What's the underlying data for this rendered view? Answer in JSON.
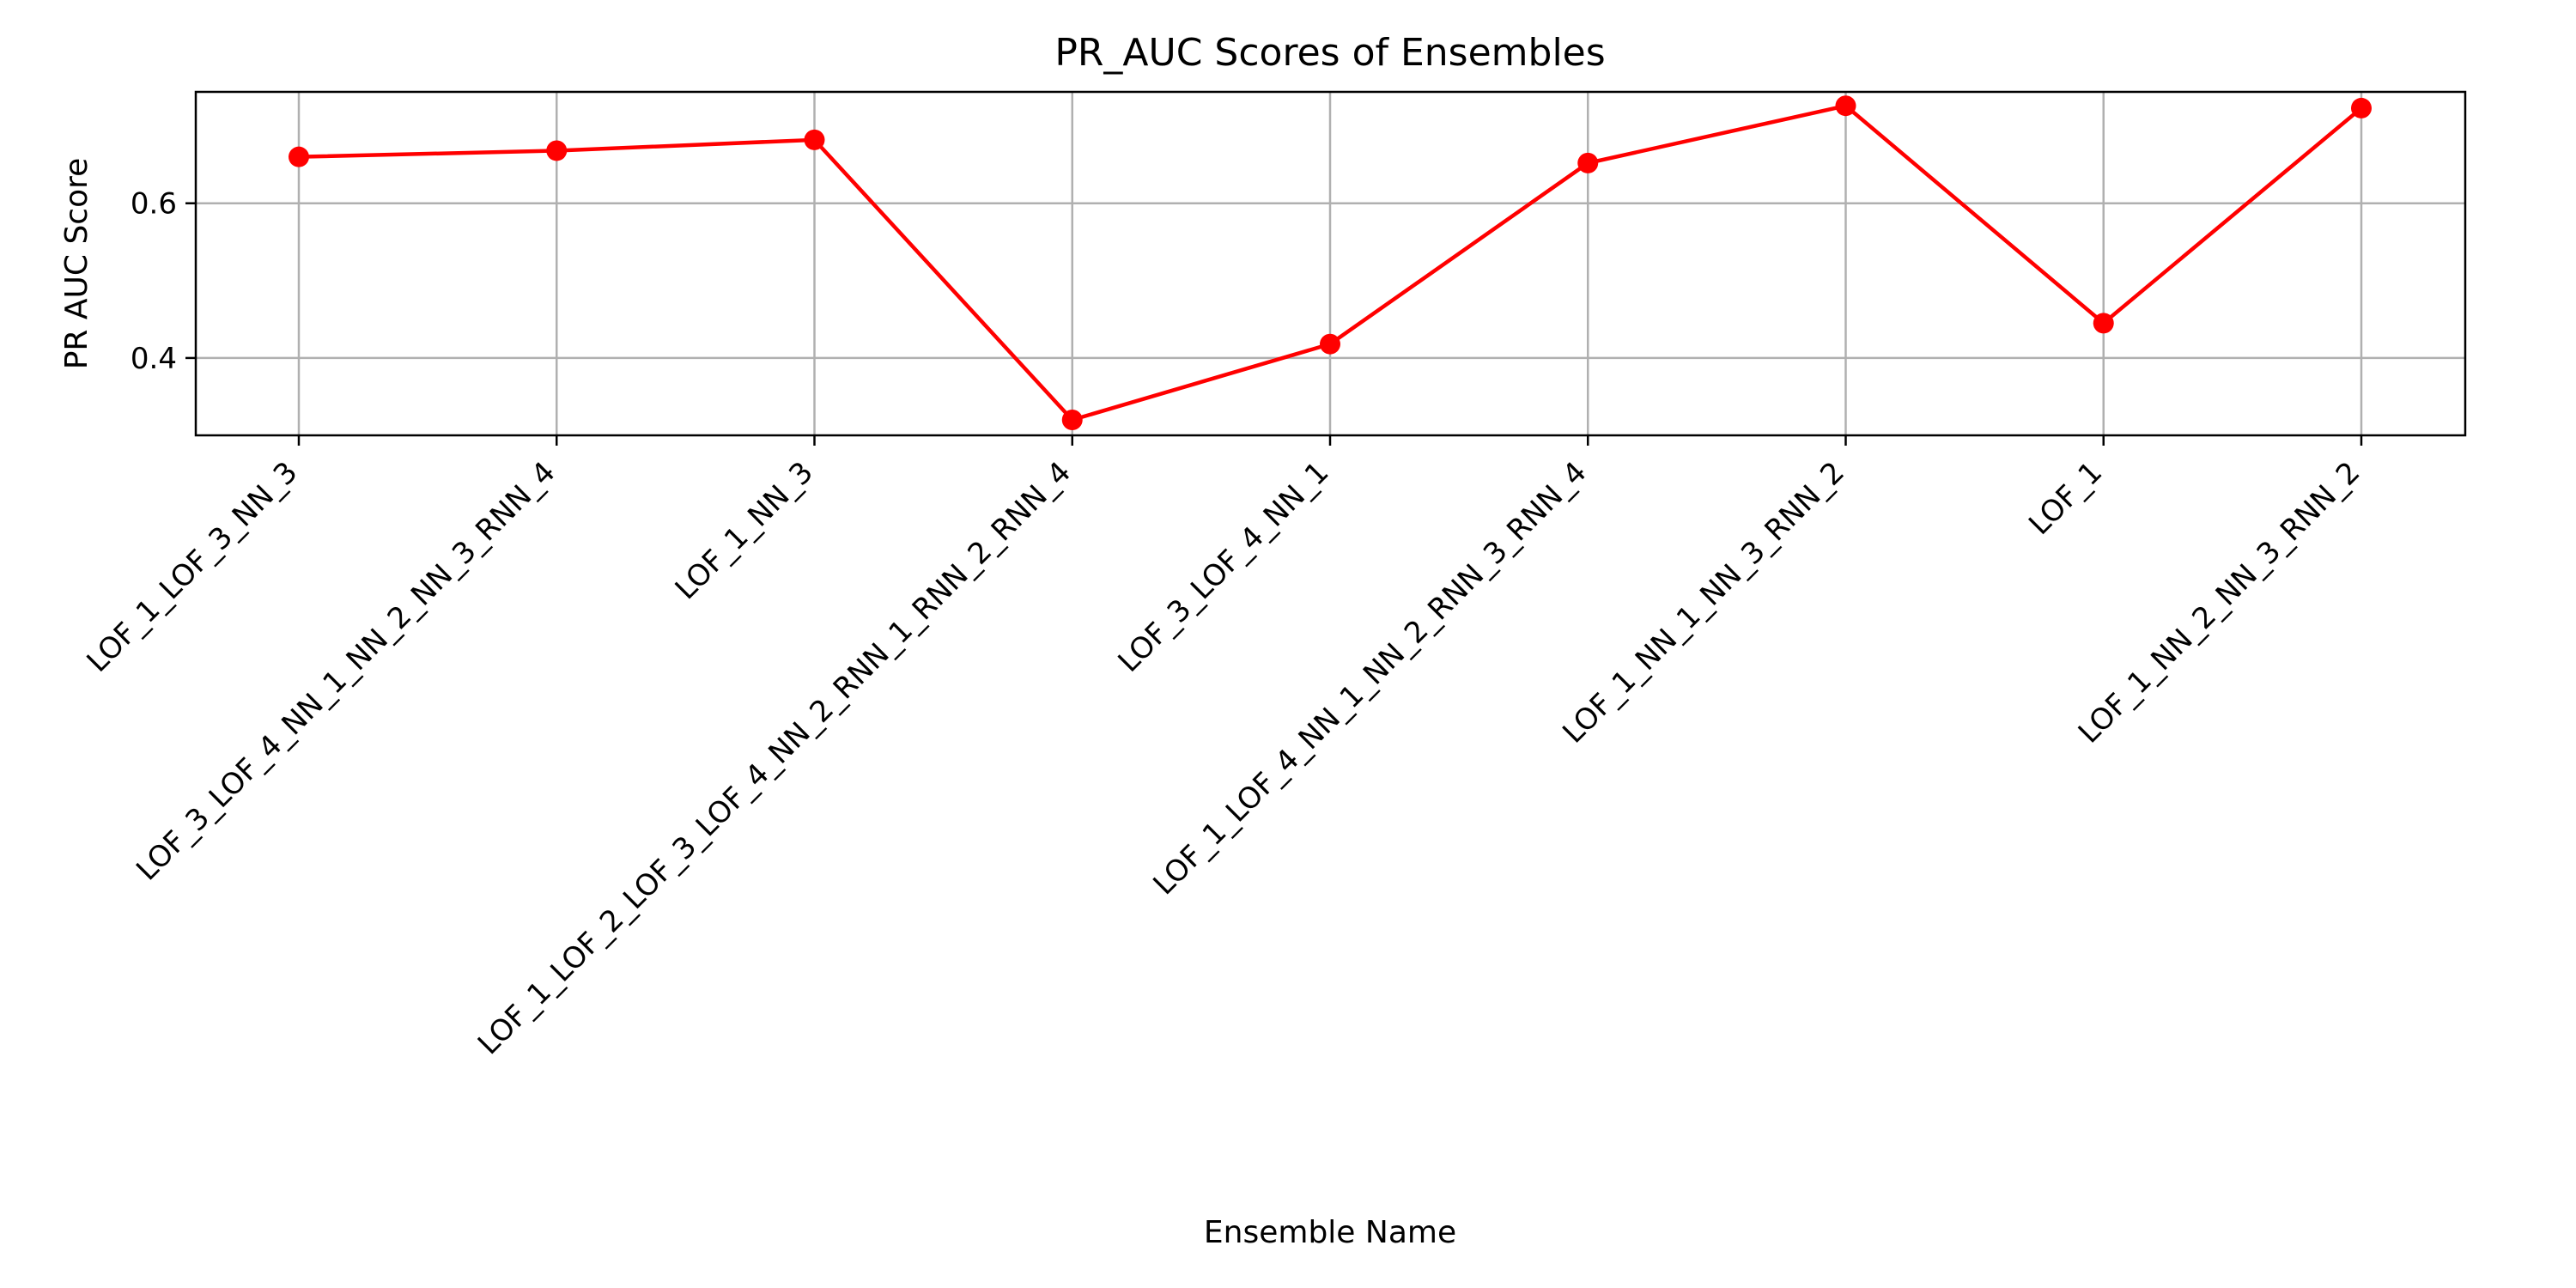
{
  "chart_data": {
    "type": "line",
    "title": "PR_AUC Scores of Ensembles",
    "xlabel": "Ensemble Name",
    "ylabel": "PR AUC Score",
    "categories": [
      "LOF_1_LOF_3_NN_3",
      "LOF_3_LOF_4_NN_1_NN_2_NN_3_RNN_4",
      "LOF_1_NN_3",
      "LOF_1_LOF_2_LOF_3_LOF_4_NN_2_RNN_1_RNN_2_RNN_4",
      "LOF_3_LOF_4_NN_1",
      "LOF_1_LOF_4_NN_1_NN_2_RNN_3_RNN_4",
      "LOF_1_NN_1_NN_3_RNN_2",
      "LOF_1",
      "LOF_1_NN_2_NN_3_RNN_2"
    ],
    "series": [
      {
        "color": "#ff0000",
        "values": [
          0.66,
          0.668,
          0.682,
          0.32,
          0.418,
          0.652,
          0.726,
          0.445,
          0.723
        ]
      }
    ],
    "ylim": [
      0.3,
      0.744
    ],
    "yticks": [
      0.4,
      0.6
    ],
    "ytick_labels": [
      "0.4",
      "0.6"
    ],
    "grid": true,
    "marker": "circle"
  }
}
